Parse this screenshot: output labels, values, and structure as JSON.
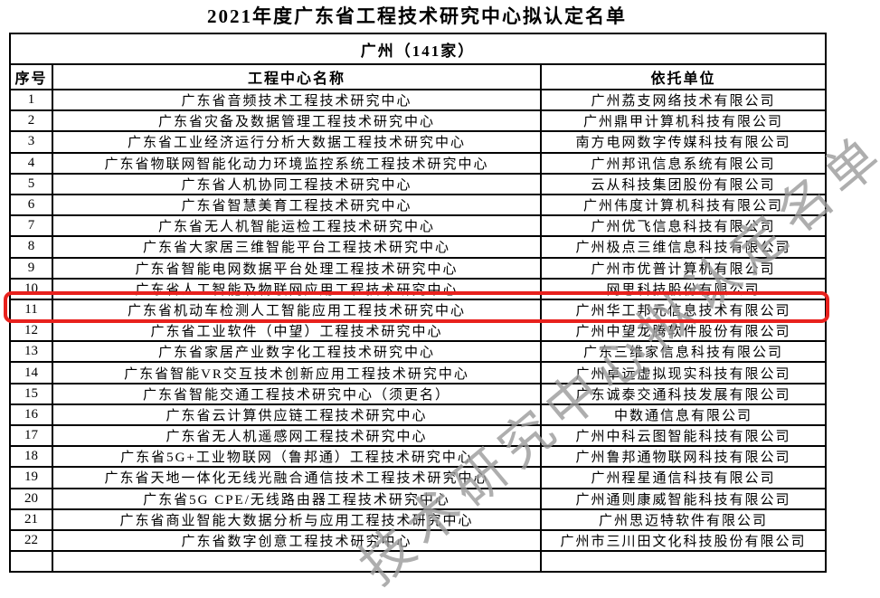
{
  "page": {
    "title": "2021年度广东省工程技术研究中心拟认定名单"
  },
  "watermark": {
    "text": "技术研究中心拟认定名单"
  },
  "colors": {
    "highlight_box": "#e8211d",
    "watermark": "#9b9b9b",
    "border": "#000000"
  },
  "table": {
    "group_header": "广州（141家）",
    "columns": {
      "serial": "序号",
      "center": "工程中心名称",
      "org": "依托单位"
    },
    "rows": [
      {
        "no": "1",
        "center": "广东省音频技术工程技术研究中心",
        "org": "广州荔支网络技术有限公司",
        "highlight": false
      },
      {
        "no": "2",
        "center": "广东省灾备及数据管理工程技术研究中心",
        "org": "广州鼎甲计算机科技有限公司",
        "highlight": false
      },
      {
        "no": "3",
        "center": "广东省工业经济运行分析大数据工程技术研究中心",
        "org": "南方电网数字传媒科技有限公司",
        "highlight": false
      },
      {
        "no": "4",
        "center": "广东省物联网智能化动力环境监控系统工程技术研究中心",
        "org": "广州邦讯信息系统有限公司",
        "highlight": false
      },
      {
        "no": "5",
        "center": "广东省人机协同工程技术研究中心",
        "org": "云从科技集团股份有限公司",
        "highlight": false
      },
      {
        "no": "6",
        "center": "广东省智慧美育工程技术研究中心",
        "org": "广州伟度计算机科技有限公司",
        "highlight": false
      },
      {
        "no": "7",
        "center": "广东省无人机智能运检工程技术研究中心",
        "org": "广州优飞信息科技有限公司",
        "highlight": false
      },
      {
        "no": "8",
        "center": "广东省大家居三维智能平台工程技术研究中心",
        "org": "广州极点三维信息科技有限公司",
        "highlight": false
      },
      {
        "no": "9",
        "center": "广东省智能电网数据平台处理工程技术研究中心",
        "org": "广州市优普计算机有限公司",
        "highlight": false
      },
      {
        "no": "10",
        "center": "广东省人工智能及物联网应用工程技术研究中心",
        "org": "网思科技股份有限公司",
        "highlight": true
      },
      {
        "no": "11",
        "center": "广东省机动车检测人工智能应用工程技术研究中心",
        "org": "广州华工邦元信息技术有限公司",
        "highlight": false
      },
      {
        "no": "12",
        "center": "广东省工业软件（中望）工程技术研究中心",
        "org": "广州中望龙腾软件股份有限公司",
        "highlight": false
      },
      {
        "no": "13",
        "center": "广东省家居产业数字化工程技术研究中心",
        "org": "广东三维家信息科技有限公司",
        "highlight": false
      },
      {
        "no": "14",
        "center": "广东省智能VR交互技术创新应用工程技术研究中心",
        "org": "广州卓远虚拟现实科技有限公司",
        "highlight": false
      },
      {
        "no": "15",
        "center": "广东省智能交通工程技术研究中心（须更名）",
        "org": "广东诚泰交通科技发展有限公司",
        "highlight": false
      },
      {
        "no": "16",
        "center": "广东省云计算供应链工程技术研究中心",
        "org": "中数通信息有限公司",
        "highlight": false
      },
      {
        "no": "17",
        "center": "广东省无人机遥感网工程技术研究中心",
        "org": "广州中科云图智能科技有限公司",
        "highlight": false
      },
      {
        "no": "18",
        "center": "广东省5G+工业物联网（鲁邦通）工程技术研究中心",
        "org": "广州鲁邦通物联网科技有限公司",
        "highlight": false
      },
      {
        "no": "19",
        "center": "广东省天地一体化无线光融合通信技术工程技术研究中心",
        "org": "广州程星通信科技有限公司",
        "highlight": false
      },
      {
        "no": "20",
        "center": "广东省5G CPE/无线路由器工程技术研究中心",
        "org": "广州通则康威智能科技有限公司",
        "highlight": false
      },
      {
        "no": "21",
        "center": "广东省商业智能大数据分析与应用工程技术研究中心",
        "org": "广州思迈特软件有限公司",
        "highlight": false
      },
      {
        "no": "22",
        "center": "广东省数字创意工程技术研究中心",
        "org": "广州市三川田文化科技股份有限公司",
        "highlight": false
      },
      {
        "no": "",
        "center": "",
        "org": "",
        "highlight": false
      }
    ]
  }
}
